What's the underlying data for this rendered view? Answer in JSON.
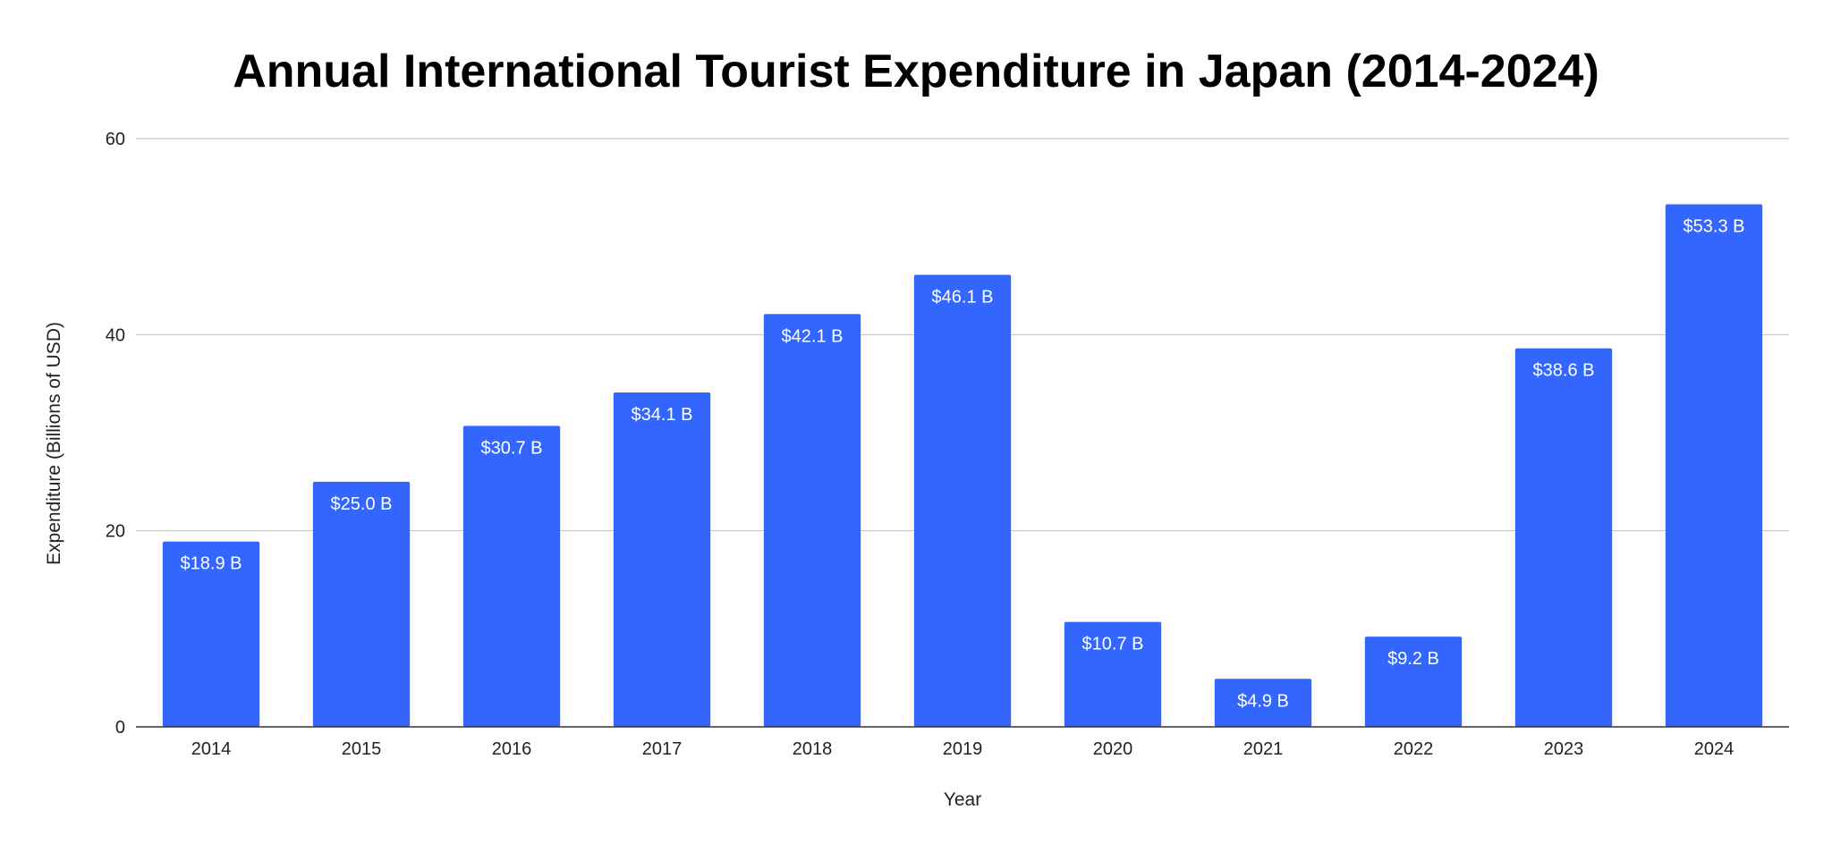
{
  "chart_data": {
    "type": "bar",
    "title": "Annual International Tourist Expenditure in Japan (2014-2024)",
    "xlabel": "Year",
    "ylabel": "Expenditure (Billions of USD)",
    "categories": [
      "2014",
      "2015",
      "2016",
      "2017",
      "2018",
      "2019",
      "2020",
      "2021",
      "2022",
      "2023",
      "2024"
    ],
    "values": [
      18.9,
      25.0,
      30.7,
      34.1,
      42.1,
      46.1,
      10.7,
      4.9,
      9.2,
      38.6,
      53.3
    ],
    "data_labels": [
      "$18.9 B",
      "$25.0 B",
      "$30.7 B",
      "$34.1 B",
      "$42.1 B",
      "$46.1 B",
      "$10.7 B",
      "$4.9 B",
      "$9.2 B",
      "$38.6 B",
      "$53.3 B"
    ],
    "ylim": [
      0,
      60
    ],
    "yticks": [
      0,
      20,
      40,
      60
    ],
    "grid": true,
    "legend": "none",
    "bar_color": "#3366ff"
  }
}
